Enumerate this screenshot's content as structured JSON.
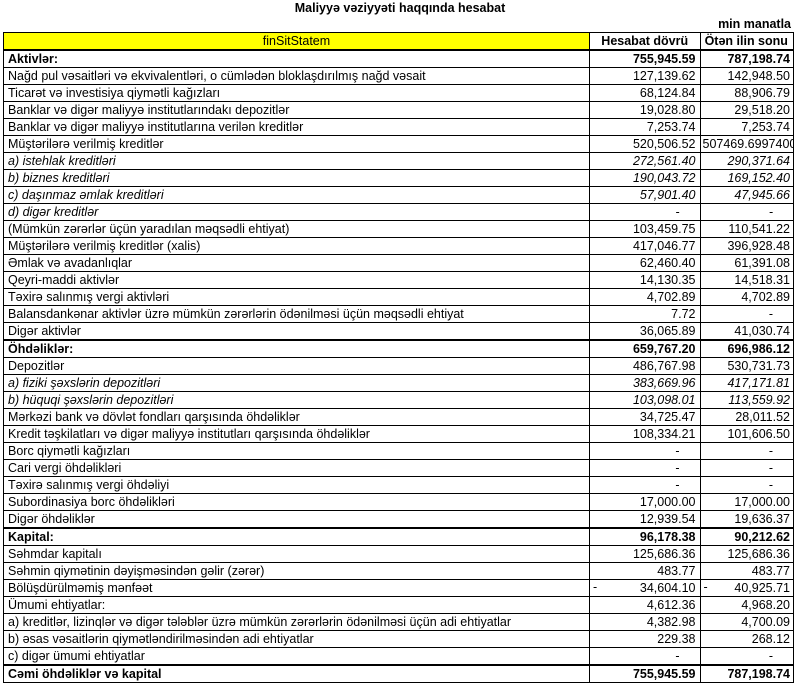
{
  "title": "Maliyyə vəziyyəti haqqında hesabat",
  "unit": "min manatla",
  "header": {
    "label": "finSitStatem",
    "col1": "Hesabat dövrü",
    "col2": "Ötən ilin sonu"
  },
  "header_color": "#ffff00",
  "rows": [
    {
      "label": "Aktivlər:",
      "v1": "755,945.59",
      "v2": "787,198.74",
      "style": "bold"
    },
    {
      "label": "Nağd pul vəsaitləri və  ekvivalentləri, o cümlədən bloklaşdırılmış nağd vəsait",
      "v1": "127,139.62",
      "v2": "142,948.50"
    },
    {
      "label": "Ticarət və investisiya qiymətli kağızları",
      "v1": "68,124.84",
      "v2": "88,906.79"
    },
    {
      "label": "Banklar və digər maliyyə institutlarındakı depozitlər",
      "v1": "19,028.80",
      "v2": "29,518.20"
    },
    {
      "label": "Banklar və digər maliyyə institutlarına verilən kreditlər",
      "v1": "7,253.74",
      "v2": "7,253.74"
    },
    {
      "label": "Müştərilərə verilmiş kreditlər",
      "v1": "520,506.52",
      "v2": "507469.6997400"
    },
    {
      "label": "a) istehlak kreditləri",
      "v1": "272,561.40",
      "v2": "290,371.64",
      "style": "italic"
    },
    {
      "label": "b) biznes kreditləri",
      "v1": "190,043.72",
      "v2": "169,152.40",
      "style": "italic"
    },
    {
      "label": "c) daşınmaz əmlak kreditləri",
      "v1": "57,901.40",
      "v2": "47,945.66",
      "style": "italic"
    },
    {
      "label": "d) digər kreditlər",
      "v1": "-",
      "v2": "-",
      "style": "italic"
    },
    {
      "label": "(Mümkün zərərlər üçün yaradılan məqsədli ehtiyat)",
      "v1": "103,459.75",
      "v2": "110,541.22"
    },
    {
      "label": "Müştərilərə verilmiş kreditlər (xalis)",
      "v1": "417,046.77",
      "v2": "396,928.48"
    },
    {
      "label": "Əmlak və avadanlıqlar",
      "v1": "62,460.40",
      "v2": "61,391.08"
    },
    {
      "label": "Qeyri-maddi aktivlər",
      "v1": "14,130.35",
      "v2": "14,518.31"
    },
    {
      "label": "Təxirə salınmış vergi aktivləri",
      "v1": "4,702.89",
      "v2": "4,702.89"
    },
    {
      "label": "Balansdankənar aktivlər üzrə mümkün zərərlərin ödənilməsi üçün məqsədli ehtiyat",
      "v1": "7.72",
      "v2": "-"
    },
    {
      "label": "Digər aktivlər",
      "v1": "36,065.89",
      "v2": "41,030.74"
    },
    {
      "label": "Öhdəliklər:",
      "v1": "659,767.20",
      "v2": "696,986.12",
      "style": "bold"
    },
    {
      "label": "Depozitlər",
      "v1": "486,767.98",
      "v2": "530,731.73"
    },
    {
      "label": "a) fiziki şəxslərin depozitləri",
      "v1": "383,669.96",
      "v2": "417,171.81",
      "style": "italic"
    },
    {
      "label": "b) hüquqi şəxslərin depozitləri",
      "v1": "103,098.01",
      "v2": "113,559.92",
      "style": "italic"
    },
    {
      "label": "Mərkəzi bank və dövlət fondları qarşısında öhdəliklər",
      "v1": "34,725.47",
      "v2": "28,011.52"
    },
    {
      "label": "Kredit təşkilatları və digər maliyyə institutları qarşısında öhdəliklər",
      "v1": "108,334.21",
      "v2": "101,606.50"
    },
    {
      "label": "Borc qiymətli kağızları",
      "v1": "-",
      "v2": "-"
    },
    {
      "label": "Cari vergi öhdəlikləri",
      "v1": "-",
      "v2": "-"
    },
    {
      "label": "Təxirə salınmış vergi öhdəliyi",
      "v1": "-",
      "v2": "-"
    },
    {
      "label": "Subordinasiya borc öhdəlikləri",
      "v1": "17,000.00",
      "v2": "17,000.00"
    },
    {
      "label": "Digər öhdəliklər",
      "v1": "12,939.54",
      "v2": "19,636.37"
    },
    {
      "label": "Kapital:",
      "v1": "96,178.38",
      "v2": "90,212.62",
      "style": "bold"
    },
    {
      "label": "Səhmdar kapitalı",
      "v1": "125,686.36",
      "v2": "125,686.36"
    },
    {
      "label": "Səhmin qiymətinin dəyişməsindən gəlir (zərər)",
      "v1": "483.77",
      "v2": "483.77"
    },
    {
      "label": "Bölüşdürülməmiş mənfəət",
      "v1": "34,604.10",
      "v2": "40,925.71",
      "negative": true
    },
    {
      "label": "Ümumi ehtiyatlar:",
      "v1": "4,612.36",
      "v2": "4,968.20"
    },
    {
      "label": "a) kreditlər, lizinqlər və digər tələblər üzrə mümkün zərərlərin ödənilməsi üçün adi ehtiyatlar",
      "v1": "4,382.98",
      "v2": "4,700.09"
    },
    {
      "label": "b) əsas vəsaitlərin qiymətləndirilməsindən adi ehtiyatlar",
      "v1": "229.38",
      "v2": "268.12"
    },
    {
      "label": "c) digər ümumi ehtiyatlar",
      "v1": "-",
      "v2": "-"
    },
    {
      "label": "Cəmi öhdəliklər və kapital",
      "v1": "755,945.59",
      "v2": "787,198.74",
      "style": "bold"
    }
  ],
  "negative_sign": "-"
}
